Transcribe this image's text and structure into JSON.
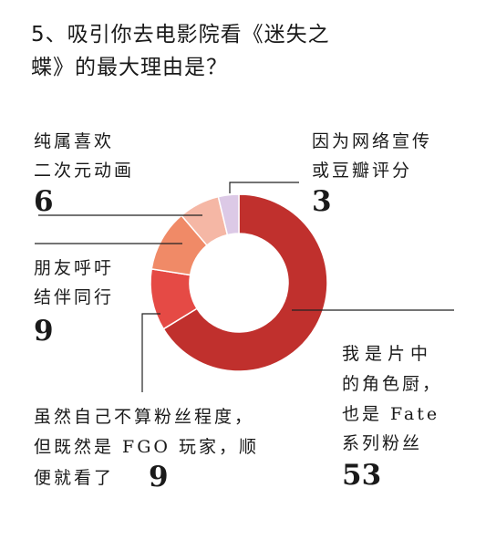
{
  "title": "5、吸引你去电影院看《迷失之蝶》的最大理由是？",
  "chart_data": {
    "type": "pie",
    "donut": true,
    "categories": [
      "我是片中的角色厨，也是Fate系列粉丝",
      "虽然自己不算粉丝程度，但既然是FGO玩家，顺便就看了",
      "朋友呼吁结伴同行",
      "纯属喜欢二次元动画",
      "因为网络宣传或豆瓣评分"
    ],
    "values": [
      53,
      9,
      9,
      6,
      3
    ],
    "colors": [
      "#c0302d",
      "#e54a45",
      "#f08a67",
      "#f5b7a5",
      "#dcc9e6"
    ]
  },
  "labels": {
    "fan": [
      "我是片中",
      "的角色厨，",
      "也是 Fate",
      "系列粉丝"
    ],
    "fgo": [
      "虽然自己不算粉丝程度，",
      "但既然是 FGO 玩家，顺",
      "便就看了"
    ],
    "friends": [
      "朋友呼吁",
      "结伴同行"
    ],
    "anime": [
      "纯属喜欢",
      "二次元动画"
    ],
    "promo": [
      "因为网络宣传",
      "或豆瓣评分"
    ]
  },
  "numbers": {
    "fan": "53",
    "fgo": "9",
    "friends": "9",
    "anime": "6",
    "promo": "3"
  }
}
